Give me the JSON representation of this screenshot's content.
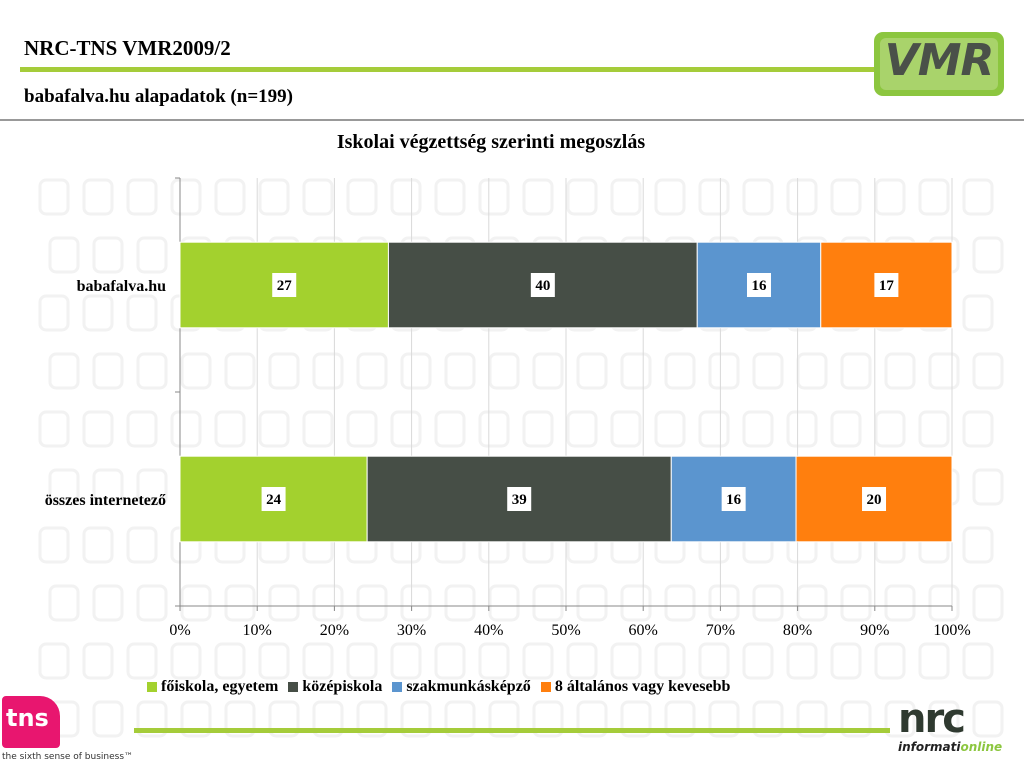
{
  "header": {
    "title": "NRC-TNS VMR2009/2",
    "subtitle": "babafalva.hu alapadatok (n=199)",
    "logo_text": "VMR"
  },
  "colors": {
    "accent_green": "#a5cc3a",
    "series": [
      "#a3d12e",
      "#464e46",
      "#5b95cf",
      "#ff7f0e"
    ]
  },
  "chart_data": {
    "type": "bar",
    "orientation": "horizontal",
    "stacked": "percent",
    "title": "Iskolai végzettség szerinti megoszlás",
    "categories": [
      "babafalva.hu",
      "összes internetező"
    ],
    "series": [
      {
        "name": "főiskola, egyetem",
        "values": [
          27,
          24
        ]
      },
      {
        "name": "középiskola",
        "values": [
          40,
          39
        ]
      },
      {
        "name": "szakmunkásképző",
        "values": [
          16,
          16
        ]
      },
      {
        "name": "8 általános vagy kevesebb",
        "values": [
          17,
          20
        ]
      }
    ],
    "xlim": [
      0,
      100
    ],
    "xticks": [
      "0%",
      "10%",
      "20%",
      "30%",
      "40%",
      "50%",
      "60%",
      "70%",
      "80%",
      "90%",
      "100%"
    ],
    "grid": true,
    "legend": "bottom"
  },
  "footer": {
    "tns_logo_text": "tns",
    "tns_tagline": "the sixth sense of business™",
    "nrc_logo_text": "nrc",
    "nrc_sub_a": "informati",
    "nrc_sub_b": "online"
  }
}
